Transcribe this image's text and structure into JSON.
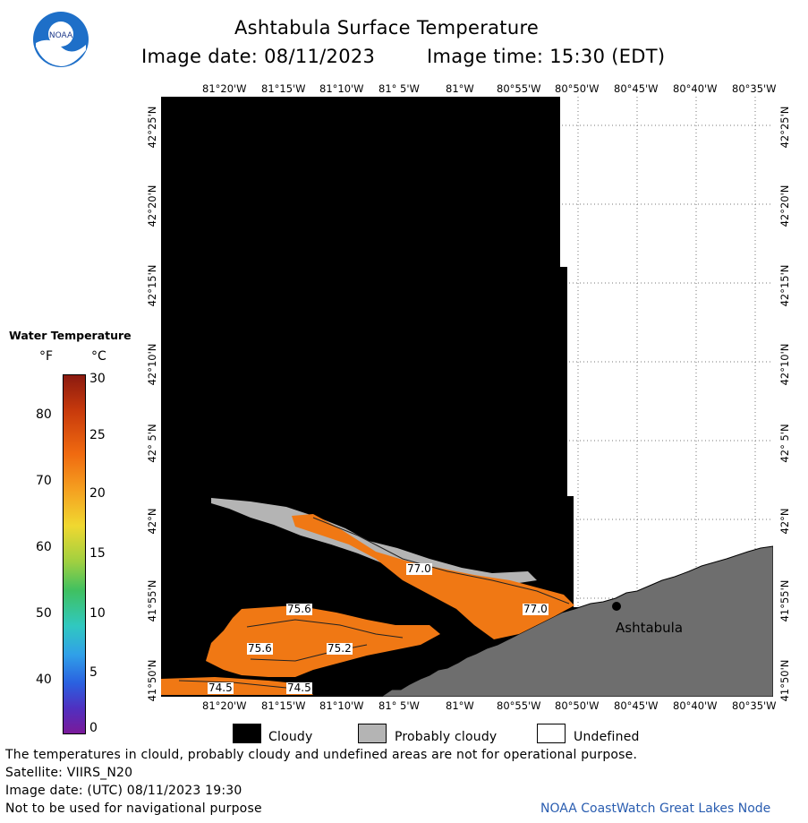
{
  "header": {
    "title": "Ashtabula Surface Temperature",
    "image_date": "Image date: 08/11/2023",
    "image_time": "Image time: 15:30 (EDT)"
  },
  "logo": {
    "text": "NOAA"
  },
  "lon_labels": [
    "81°20'W",
    "81°15'W",
    "81°10'W",
    "81° 5'W",
    "81°W",
    "80°55'W",
    "80°50'W",
    "80°45'W",
    "80°40'W",
    "80°35'W"
  ],
  "lat_labels": [
    "42°25'N",
    "42°20'N",
    "42°15'N",
    "42°10'N",
    "42° 5'N",
    "42°N",
    "41°55'N",
    "41°50'N"
  ],
  "legend": {
    "title": "Water Temperature",
    "unit_f": "°F",
    "unit_c": "°C",
    "f_ticks": [
      "80",
      "70",
      "60",
      "50",
      "40"
    ],
    "c_ticks": [
      "30",
      "25",
      "20",
      "15",
      "10",
      "5",
      "0"
    ]
  },
  "contour_labels": [
    "77.0",
    "77.0",
    "75.6",
    "75.6",
    "75.2",
    "74.5",
    "74.5"
  ],
  "place_label": "Ashtabula",
  "key": {
    "cloudy": "Cloudy",
    "probably_cloudy": "Probably cloudy",
    "undefined": "Undefined"
  },
  "footer": {
    "line1": "The temperatures in clould, probably cloudy and undefined areas are not for operational purpose.",
    "line2": "Satellite: VIIRS_N20",
    "line3": "Image date: (UTC) 08/11/2023  19:30",
    "line4": "Not to be used for navigational purpose",
    "credit": "NOAA CoastWatch Great Lakes Node"
  },
  "colors": {
    "cloudy": "#000000",
    "probably_cloudy": "#b4b4b4",
    "land": "#6e6e6e",
    "water_warm": "#f07814",
    "undefined": "#ffffff"
  }
}
